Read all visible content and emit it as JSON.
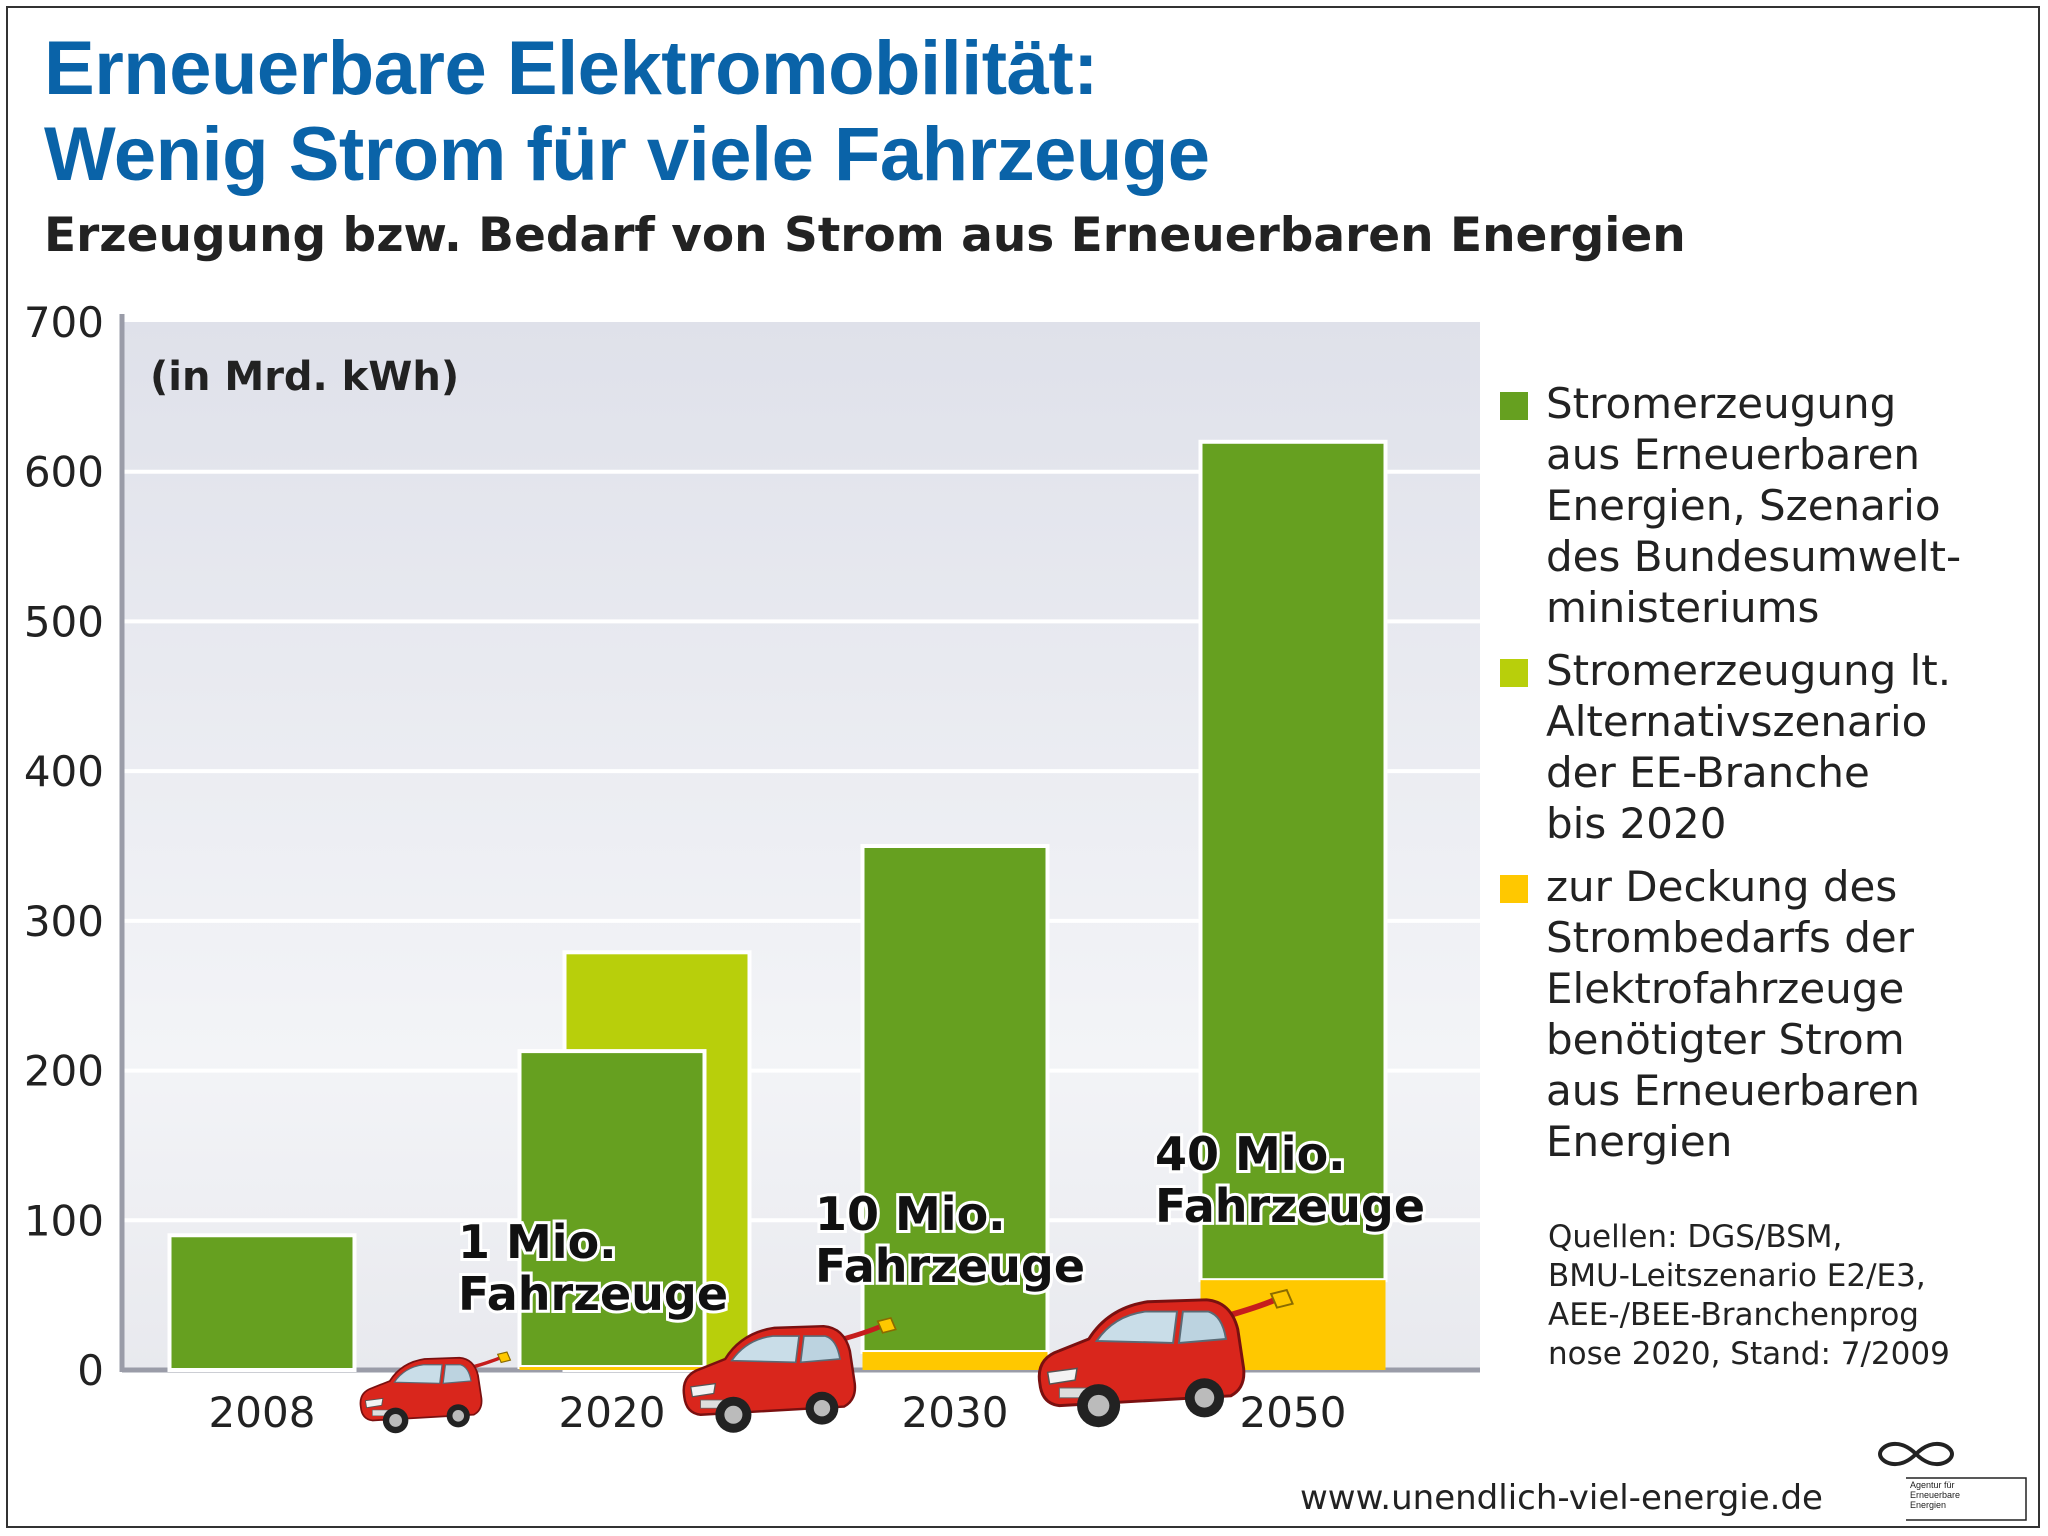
{
  "header": {
    "title_line1": "Erneuerbare Elektromobilität:",
    "title_line2": "Wenig Strom für viele Fahrzeuge",
    "subtitle": "Erzeugung bzw. Bedarf von Strom aus Erneuerbaren Energien"
  },
  "colors": {
    "title_blue": "#0a63a8",
    "green": "#66a020",
    "light_green": "#b8cf0b",
    "yellow": "#ffc800",
    "plot_bg": "#e4e6ee"
  },
  "chart_data": {
    "type": "bar",
    "unit_label": "(in Mrd. kWh)",
    "categories": [
      "2008",
      "2020",
      "2030",
      "2050"
    ],
    "ylim": [
      0,
      700
    ],
    "yticks": [
      0,
      100,
      200,
      300,
      400,
      500,
      600,
      700
    ],
    "series": [
      {
        "name": "Stromerzeugung aus Erneuerbaren Energien, Szenario des Bundesumweltministeriums",
        "color": "#66a020",
        "values": [
          90,
          213,
          350,
          620
        ]
      },
      {
        "name": "Stromerzeugung lt. Alternativszenario der EE-Branche bis 2020",
        "color": "#b8cf0b",
        "values": [
          null,
          279,
          null,
          null
        ]
      },
      {
        "name": "zur Deckung des Strombedarfs der Elektrofahrzeuge benötigter Strom aus Erneuerbaren Energien",
        "color": "#ffc800",
        "values": [
          null,
          2,
          12,
          60
        ]
      }
    ],
    "annotations": [
      {
        "category": "2020",
        "line1": "1 Mio.",
        "line2": "Fahrzeuge"
      },
      {
        "category": "2030",
        "line1": "10 Mio.",
        "line2": "Fahrzeuge"
      },
      {
        "category": "2050",
        "line1": "40 Mio.",
        "line2": "Fahrzeuge"
      }
    ]
  },
  "legend": {
    "items": [
      {
        "text": "Stromerzeugung\naus Erneuerbaren\nEnergien, Szenario\ndes Bundesumwelt-\nministeriums",
        "color": "#66a020"
      },
      {
        "text": "Stromerzeugung lt.\nAlternativszenario\nder EE-Branche\nbis 2020",
        "color": "#b8cf0b"
      },
      {
        "text": "zur Deckung des\nStrombedarfs der\nElektrofahrzeuge\nbenötigter Strom\naus Erneuerbaren\nEnergien",
        "color": "#ffc800"
      }
    ]
  },
  "sources": "Quellen: DGS/BSM,\nBMU-Leitszenario E2/E3,\nAEE-/BEE-Branchenprog\nnose 2020, Stand: 7/2009",
  "footer": {
    "website": "www.unendlich-viel-energie.de",
    "logo_text": "Agentur für\nErneuerbare\nEnergien"
  }
}
